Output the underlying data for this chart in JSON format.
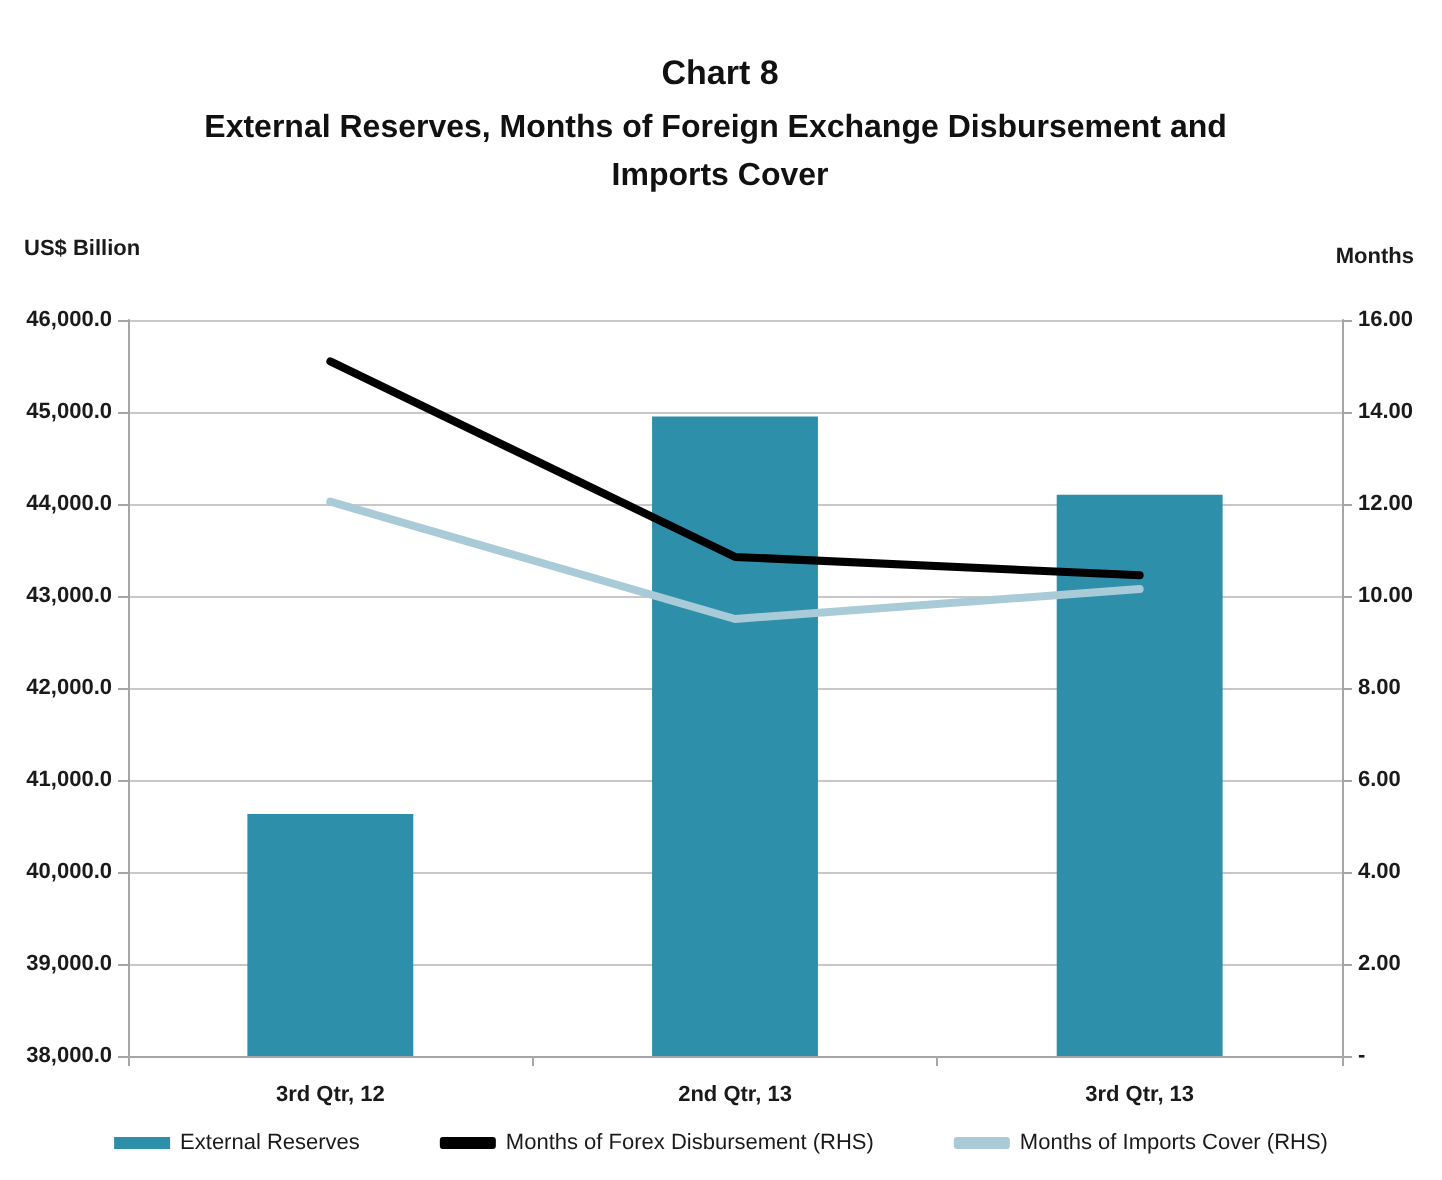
{
  "chart_data": {
    "type": "bar",
    "title": "Chart 8",
    "subtitle": "External Reserves, Months of Foreign Exchange Disbursement and Imports Cover",
    "ylabel": "US$ Billion",
    "y2label": "Months",
    "categories": [
      "3rd Qtr, 12",
      "2nd Qtr, 13",
      "3rd Qtr, 13"
    ],
    "series": [
      {
        "name": "External Reserves",
        "color": "#2e8fab",
        "values": [
          40630,
          44950,
          44100
        ]
      },
      {
        "name": "Months of Forex Disbursement (RHS)",
        "type": "line",
        "axis": "y2",
        "color": "#000000",
        "values": [
          15.1,
          10.85,
          10.45
        ]
      },
      {
        "name": "Months of Imports Cover (RHS)",
        "type": "line",
        "axis": "y2",
        "color": "#a9cbd8",
        "values": [
          12.05,
          9.5,
          10.15
        ]
      }
    ],
    "ylim": [
      38000,
      46000
    ],
    "yticks": [
      {
        "value": 38000,
        "label": "38,000.0"
      },
      {
        "value": 39000,
        "label": "39,000.0"
      },
      {
        "value": 40000,
        "label": "40,000.0"
      },
      {
        "value": 41000,
        "label": "41,000.0"
      },
      {
        "value": 42000,
        "label": "42,000.0"
      },
      {
        "value": 43000,
        "label": "43,000.0"
      },
      {
        "value": 44000,
        "label": "44,000.0"
      },
      {
        "value": 45000,
        "label": "45,000.0"
      },
      {
        "value": 46000,
        "label": "46,000.0"
      }
    ],
    "y2lim": [
      0,
      16
    ],
    "y2ticks": [
      {
        "value": 0,
        "label": "-"
      },
      {
        "value": 2,
        "label": "2.00"
      },
      {
        "value": 4,
        "label": "4.00"
      },
      {
        "value": 6,
        "label": "6.00"
      },
      {
        "value": 8,
        "label": "8.00"
      },
      {
        "value": 10,
        "label": "10.00"
      },
      {
        "value": 12,
        "label": "12.00"
      },
      {
        "value": 14,
        "label": "14.00"
      },
      {
        "value": 16,
        "label": "16.00"
      }
    ],
    "grid": "y",
    "legend": "bottom",
    "marker": "none",
    "line_style": "solid"
  }
}
